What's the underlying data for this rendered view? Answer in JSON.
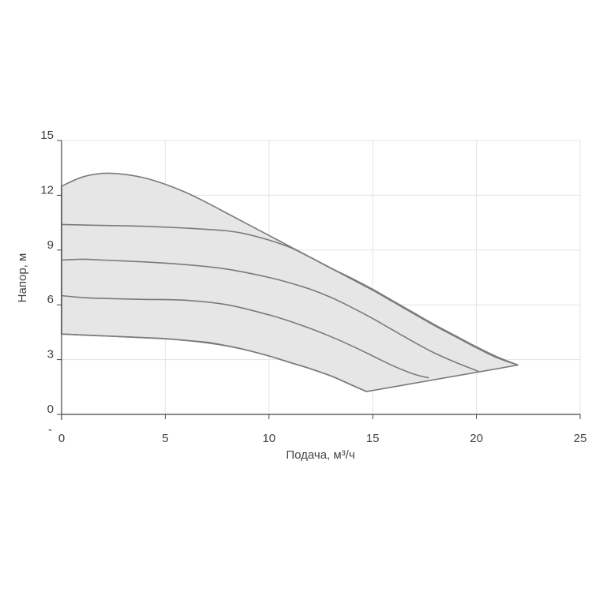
{
  "chart_data": {
    "type": "area",
    "xlabel": "Подача, м³/ч",
    "ylabel": "Напор, м",
    "xlim": [
      0,
      25
    ],
    "ylim": [
      0,
      15
    ],
    "x_ticks": [
      "0",
      "5",
      "10",
      "15",
      "20",
      "25"
    ],
    "y_ticks": [
      "0",
      "3",
      "6",
      "9",
      "12",
      "15"
    ],
    "y_extra_tick": "-",
    "grid": true,
    "colors": {
      "fill": "#e6e6e6",
      "line": "#7a7a7a",
      "grid": "#e3e3e3",
      "axis": "#444444"
    },
    "envelope": {
      "x": [
        0,
        1,
        2,
        3,
        4,
        5,
        6,
        7,
        8,
        9,
        10,
        11,
        12,
        13,
        14,
        15,
        16,
        17,
        18,
        19,
        20,
        21,
        22,
        21,
        20,
        19,
        18,
        17,
        16,
        15,
        14.7,
        14,
        13,
        12,
        11,
        10,
        9,
        8,
        7,
        6,
        5,
        4,
        3,
        2,
        1,
        0
      ],
      "y": [
        12.5,
        13.0,
        13.2,
        13.15,
        12.95,
        12.6,
        12.15,
        11.6,
        11.0,
        10.4,
        9.8,
        9.2,
        8.6,
        8.0,
        7.45,
        6.85,
        6.2,
        5.55,
        4.9,
        4.3,
        3.7,
        3.15,
        2.7,
        2.5,
        2.3,
        2.1,
        1.95,
        1.8,
        1.6,
        1.4,
        1.25,
        1.6,
        2.1,
        2.5,
        2.85,
        3.2,
        3.5,
        3.75,
        3.95,
        4.05,
        4.15,
        4.2,
        4.25,
        4.3,
        4.35,
        4.4
      ]
    },
    "series": [
      {
        "x": [
          0,
          2,
          4,
          6,
          8,
          9,
          10,
          11,
          12,
          13,
          14,
          15,
          16,
          17,
          18,
          19,
          20,
          21,
          22
        ],
        "y": [
          10.4,
          10.35,
          10.3,
          10.2,
          10.05,
          9.85,
          9.55,
          9.15,
          8.6,
          8.0,
          7.4,
          6.8,
          6.15,
          5.5,
          4.85,
          4.25,
          3.65,
          3.1,
          2.7
        ]
      },
      {
        "x": [
          0,
          1,
          2,
          4,
          6,
          8,
          10,
          11,
          12,
          13,
          14,
          15,
          16,
          17,
          18,
          19,
          20,
          20.1
        ],
        "y": [
          8.45,
          8.5,
          8.45,
          8.35,
          8.2,
          7.95,
          7.5,
          7.2,
          6.85,
          6.4,
          5.85,
          5.25,
          4.6,
          3.95,
          3.35,
          2.85,
          2.4,
          2.35
        ]
      },
      {
        "x": [
          0,
          1,
          2,
          4,
          6,
          8,
          10,
          11,
          12,
          13,
          14,
          15,
          16,
          17,
          17.7
        ],
        "y": [
          6.5,
          6.4,
          6.35,
          6.3,
          6.25,
          6.0,
          5.45,
          5.1,
          4.7,
          4.25,
          3.75,
          3.2,
          2.65,
          2.2,
          2.0
        ]
      },
      {
        "x": [
          0,
          2,
          4,
          6,
          8,
          9,
          10,
          11,
          12,
          13,
          14,
          14.7
        ],
        "y": [
          4.4,
          4.3,
          4.2,
          4.05,
          3.75,
          3.5,
          3.2,
          2.85,
          2.5,
          2.1,
          1.6,
          1.25
        ]
      }
    ]
  }
}
